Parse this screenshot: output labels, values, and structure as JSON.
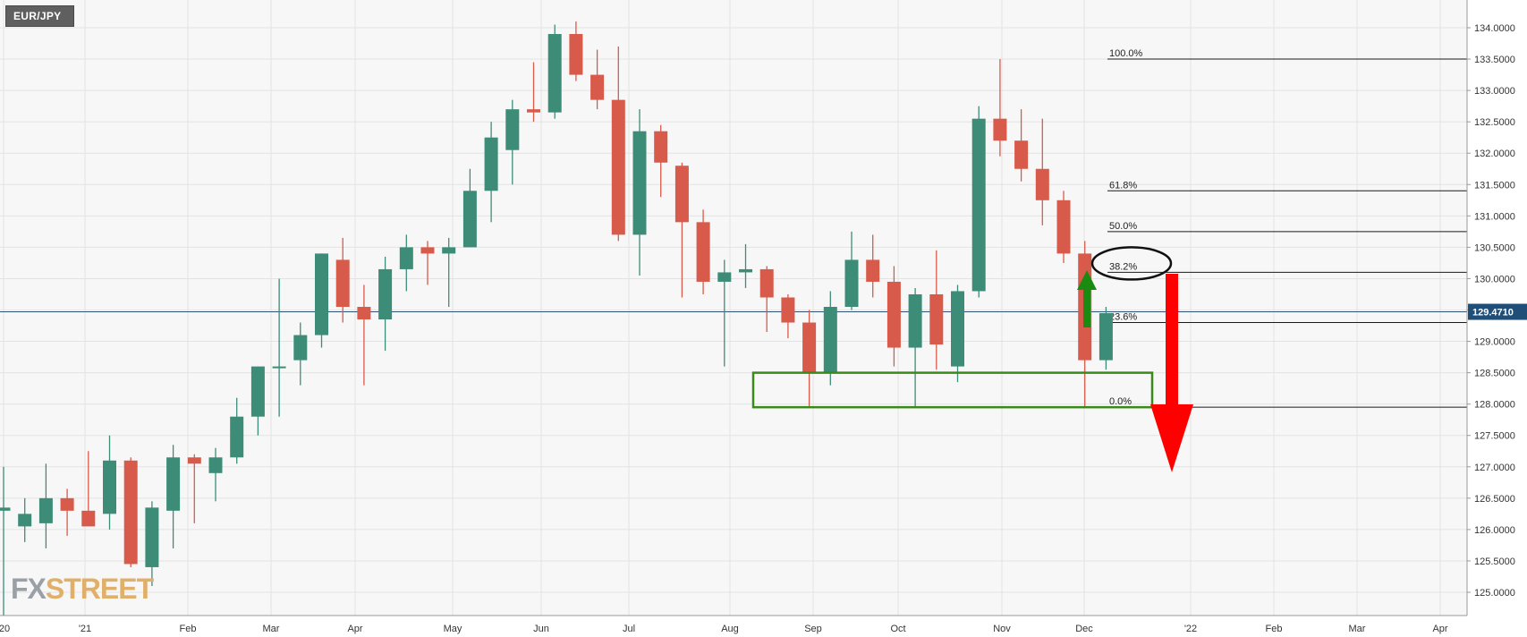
{
  "symbol": "EUR/JPY",
  "logo": {
    "part1": "FX",
    "part2": "STREET"
  },
  "current_price_label": "129.4710",
  "colors": {
    "up": "#3d8c78",
    "down": "#d85a4a",
    "zone": "#3a8a1a",
    "up_arrow": "#1a8a10",
    "down_arrow": "#ff0000",
    "price_tag": "#1f4e79"
  },
  "chart_data": {
    "type": "candlestick",
    "timeframe": "weekly",
    "ylim": [
      124.6,
      134.3
    ],
    "yticks": [
      "125.0000",
      "125.5000",
      "126.0000",
      "126.5000",
      "127.0000",
      "127.5000",
      "128.0000",
      "128.5000",
      "129.0000",
      "129.5000",
      "130.0000",
      "130.5000",
      "131.0000",
      "131.5000",
      "132.0000",
      "132.5000",
      "133.0000",
      "133.5000",
      "134.0000"
    ],
    "xticks": [
      "'20",
      "'21",
      "Feb",
      "Mar",
      "Apr",
      "May",
      "Jun",
      "Jul",
      "Aug",
      "Sep",
      "Oct",
      "Nov",
      "Dec",
      "'22",
      "Feb",
      "Mar",
      "Apr"
    ],
    "candles": [
      {
        "o": 126.3,
        "h": 127.0,
        "l": 124.6,
        "c": 126.35
      },
      {
        "o": 126.05,
        "h": 126.5,
        "l": 125.8,
        "c": 126.25
      },
      {
        "o": 126.1,
        "h": 127.05,
        "l": 125.7,
        "c": 126.5
      },
      {
        "o": 126.5,
        "h": 126.65,
        "l": 125.9,
        "c": 126.3
      },
      {
        "o": 126.3,
        "h": 127.25,
        "l": 126.05,
        "c": 126.05
      },
      {
        "o": 126.25,
        "h": 127.5,
        "l": 126.0,
        "c": 127.1
      },
      {
        "o": 127.1,
        "h": 127.15,
        "l": 125.4,
        "c": 125.45
      },
      {
        "o": 125.4,
        "h": 126.45,
        "l": 125.1,
        "c": 126.35
      },
      {
        "o": 126.3,
        "h": 127.35,
        "l": 125.7,
        "c": 127.15
      },
      {
        "o": 127.15,
        "h": 127.2,
        "l": 126.1,
        "c": 127.05
      },
      {
        "o": 126.9,
        "h": 127.3,
        "l": 126.45,
        "c": 127.15
      },
      {
        "o": 127.15,
        "h": 128.1,
        "l": 127.05,
        "c": 127.8
      },
      {
        "o": 127.8,
        "h": 128.6,
        "l": 127.5,
        "c": 128.6
      },
      {
        "o": 128.6,
        "h": 130.0,
        "l": 127.8,
        "c": 128.6
      },
      {
        "o": 128.7,
        "h": 129.3,
        "l": 128.3,
        "c": 129.1
      },
      {
        "o": 129.1,
        "h": 130.4,
        "l": 128.9,
        "c": 130.4
      },
      {
        "o": 130.3,
        "h": 130.65,
        "l": 129.3,
        "c": 129.55
      },
      {
        "o": 129.55,
        "h": 129.9,
        "l": 128.3,
        "c": 129.35
      },
      {
        "o": 129.35,
        "h": 130.35,
        "l": 128.85,
        "c": 130.15
      },
      {
        "o": 130.15,
        "h": 130.7,
        "l": 129.8,
        "c": 130.5
      },
      {
        "o": 130.5,
        "h": 130.6,
        "l": 129.9,
        "c": 130.4
      },
      {
        "o": 130.4,
        "h": 130.65,
        "l": 129.55,
        "c": 130.5
      },
      {
        "o": 130.5,
        "h": 131.75,
        "l": 130.5,
        "c": 131.4
      },
      {
        "o": 131.4,
        "h": 132.5,
        "l": 130.9,
        "c": 132.25
      },
      {
        "o": 132.05,
        "h": 132.85,
        "l": 131.5,
        "c": 132.7
      },
      {
        "o": 132.7,
        "h": 133.45,
        "l": 132.5,
        "c": 132.65
      },
      {
        "o": 132.65,
        "h": 134.05,
        "l": 132.55,
        "c": 133.9
      },
      {
        "o": 133.9,
        "h": 134.1,
        "l": 133.15,
        "c": 133.25
      },
      {
        "o": 133.25,
        "h": 133.65,
        "l": 132.7,
        "c": 132.85
      },
      {
        "o": 132.85,
        "h": 133.7,
        "l": 130.6,
        "c": 130.7
      },
      {
        "o": 130.7,
        "h": 132.7,
        "l": 130.05,
        "c": 132.35
      },
      {
        "o": 132.35,
        "h": 132.45,
        "l": 131.3,
        "c": 131.85
      },
      {
        "o": 131.8,
        "h": 131.85,
        "l": 129.7,
        "c": 130.9
      },
      {
        "o": 130.9,
        "h": 131.1,
        "l": 129.75,
        "c": 129.95
      },
      {
        "o": 129.95,
        "h": 130.3,
        "l": 128.6,
        "c": 130.1
      },
      {
        "o": 130.1,
        "h": 130.55,
        "l": 129.85,
        "c": 130.15
      },
      {
        "o": 130.15,
        "h": 130.2,
        "l": 129.15,
        "c": 129.7
      },
      {
        "o": 129.7,
        "h": 129.75,
        "l": 129.05,
        "c": 129.3
      },
      {
        "o": 129.3,
        "h": 129.5,
        "l": 127.95,
        "c": 128.5
      },
      {
        "o": 128.5,
        "h": 129.8,
        "l": 128.3,
        "c": 129.55
      },
      {
        "o": 129.55,
        "h": 130.75,
        "l": 129.5,
        "c": 130.3
      },
      {
        "o": 130.3,
        "h": 130.7,
        "l": 129.7,
        "c": 129.95
      },
      {
        "o": 129.95,
        "h": 130.2,
        "l": 128.6,
        "c": 128.9
      },
      {
        "o": 128.9,
        "h": 129.85,
        "l": 127.95,
        "c": 129.75
      },
      {
        "o": 129.75,
        "h": 130.45,
        "l": 128.55,
        "c": 128.95
      },
      {
        "o": 128.6,
        "h": 129.9,
        "l": 128.35,
        "c": 129.8
      },
      {
        "o": 129.8,
        "h": 132.75,
        "l": 129.7,
        "c": 132.55
      },
      {
        "o": 132.55,
        "h": 133.5,
        "l": 131.95,
        "c": 132.2
      },
      {
        "o": 132.2,
        "h": 132.7,
        "l": 131.55,
        "c": 131.75
      },
      {
        "o": 131.75,
        "h": 132.55,
        "l": 130.85,
        "c": 131.25
      },
      {
        "o": 131.25,
        "h": 131.4,
        "l": 130.25,
        "c": 130.4
      },
      {
        "o": 130.4,
        "h": 130.6,
        "l": 127.95,
        "c": 128.7
      },
      {
        "o": 128.7,
        "h": 129.55,
        "l": 128.55,
        "c": 129.45
      }
    ],
    "current_price": 129.471,
    "fibonacci": [
      {
        "label": "100.0%",
        "value": 133.5
      },
      {
        "label": "61.8%",
        "value": 131.4
      },
      {
        "label": "50.0%",
        "value": 130.75
      },
      {
        "label": "38.2%",
        "value": 130.1
      },
      {
        "label": "23.6%",
        "value": 129.3
      },
      {
        "label": "0.0%",
        "value": 127.95
      }
    ],
    "support_zone": [
      127.95,
      128.5
    ]
  }
}
